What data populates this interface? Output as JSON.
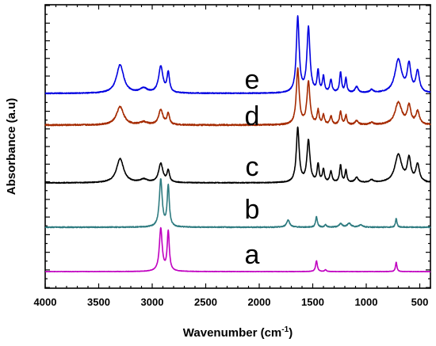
{
  "chart_data": {
    "type": "line",
    "title": "",
    "xlabel": "Wavenumber (cm",
    "xlabel_sup": "-1",
    "xlabel_close": ")",
    "ylabel": "Absorbance (a.u)",
    "xlim": [
      4000,
      400
    ],
    "x_reversed": true,
    "x_ticks": [
      4000,
      3500,
      3000,
      2500,
      2000,
      1500,
      1000,
      500
    ],
    "grid": false,
    "series": [
      {
        "name": "a",
        "color": "#c000c0",
        "peaks": [
          [
            2920,
            1.0,
            16
          ],
          [
            2850,
            0.92,
            12
          ],
          [
            1465,
            0.25,
            10
          ],
          [
            1380,
            0.04,
            10
          ],
          [
            720,
            0.22,
            8
          ]
        ],
        "noise": 0.004
      },
      {
        "name": "b",
        "color": "#2e7b80",
        "peaks": [
          [
            2920,
            1.0,
            16
          ],
          [
            2850,
            0.86,
            12
          ],
          [
            1730,
            0.15,
            18
          ],
          [
            1465,
            0.22,
            10
          ],
          [
            1380,
            0.05,
            10
          ],
          [
            1240,
            0.07,
            18
          ],
          [
            1160,
            0.08,
            20
          ],
          [
            1050,
            0.05,
            20
          ],
          [
            720,
            0.19,
            8
          ]
        ],
        "noise": 0.01
      },
      {
        "name": "c",
        "color": "#000000",
        "peaks": [
          [
            3300,
            0.38,
            40
          ],
          [
            3080,
            0.05,
            40
          ],
          [
            2920,
            0.3,
            24
          ],
          [
            2850,
            0.18,
            14
          ],
          [
            1640,
            0.86,
            16
          ],
          [
            1540,
            0.66,
            17
          ],
          [
            1450,
            0.28,
            11
          ],
          [
            1400,
            0.2,
            11
          ],
          [
            1330,
            0.17,
            12
          ],
          [
            1240,
            0.27,
            11
          ],
          [
            1190,
            0.19,
            10
          ],
          [
            1090,
            0.08,
            18
          ],
          [
            950,
            0.04,
            20
          ],
          [
            700,
            0.44,
            38
          ],
          [
            600,
            0.36,
            20
          ],
          [
            520,
            0.28,
            20
          ]
        ],
        "noise": 0.006
      },
      {
        "name": "d",
        "color": "#a52a00",
        "peaks": [
          [
            3300,
            0.33,
            40
          ],
          [
            3080,
            0.05,
            40
          ],
          [
            2920,
            0.27,
            24
          ],
          [
            2850,
            0.2,
            14
          ],
          [
            1640,
            1.0,
            16
          ],
          [
            1540,
            0.77,
            17
          ],
          [
            1450,
            0.25,
            11
          ],
          [
            1400,
            0.17,
            11
          ],
          [
            1330,
            0.15,
            12
          ],
          [
            1240,
            0.24,
            11
          ],
          [
            1190,
            0.17,
            10
          ],
          [
            1090,
            0.07,
            18
          ],
          [
            950,
            0.04,
            20
          ],
          [
            700,
            0.4,
            38
          ],
          [
            600,
            0.33,
            20
          ],
          [
            520,
            0.23,
            20
          ]
        ],
        "noise": 0.012
      },
      {
        "name": "e",
        "color": "#0000e0",
        "peaks": [
          [
            3300,
            0.38,
            40
          ],
          [
            3080,
            0.06,
            40
          ],
          [
            2920,
            0.35,
            24
          ],
          [
            2850,
            0.26,
            14
          ],
          [
            1640,
            1.0,
            16
          ],
          [
            1540,
            0.86,
            17
          ],
          [
            1450,
            0.28,
            11
          ],
          [
            1400,
            0.21,
            11
          ],
          [
            1330,
            0.17,
            12
          ],
          [
            1240,
            0.27,
            11
          ],
          [
            1190,
            0.19,
            10
          ],
          [
            1090,
            0.08,
            18
          ],
          [
            950,
            0.04,
            20
          ],
          [
            700,
            0.44,
            38
          ],
          [
            600,
            0.36,
            20
          ],
          [
            520,
            0.28,
            20
          ]
        ],
        "noise": 0.006
      }
    ]
  }
}
